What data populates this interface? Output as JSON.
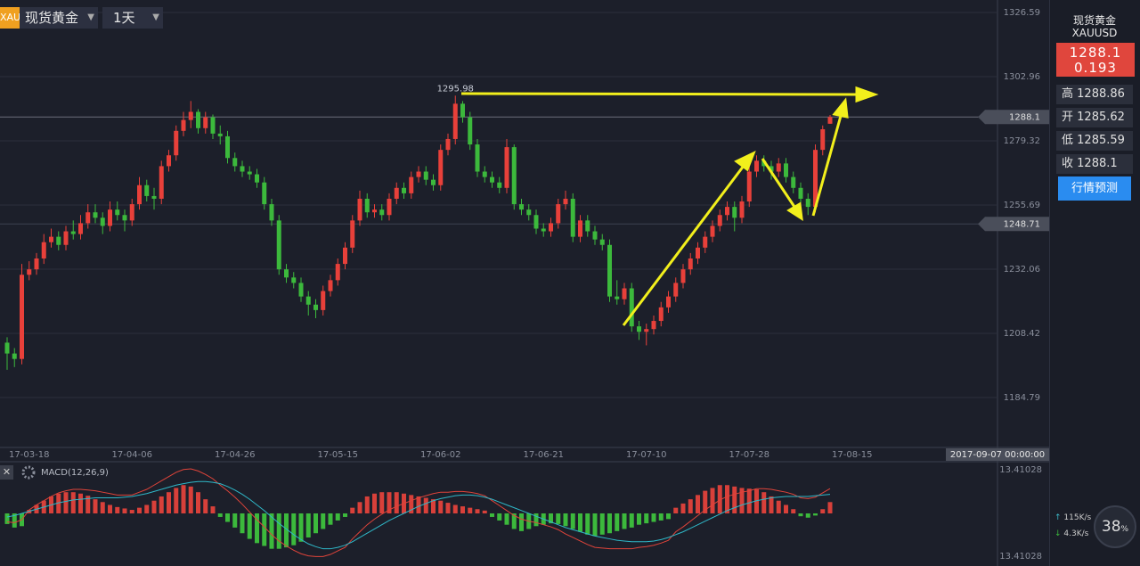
{
  "toolbar": {
    "badge": "XAU",
    "symbol": "现货黄金",
    "period": "1天"
  },
  "chart_data": [
    {
      "type": "candlestick",
      "categories": [
        null,
        null,
        null,
        "17-03-18",
        null,
        null,
        null,
        null,
        null,
        null,
        null,
        null,
        null,
        null,
        null,
        null,
        null,
        "17-04-06",
        null,
        null,
        null,
        null,
        null,
        null,
        null,
        null,
        null,
        null,
        null,
        null,
        null,
        "17-04-26",
        null,
        null,
        null,
        null,
        null,
        null,
        null,
        null,
        null,
        null,
        null,
        null,
        null,
        "17-05-15",
        null,
        null,
        null,
        null,
        null,
        null,
        null,
        null,
        null,
        null,
        null,
        null,
        null,
        "17-06-02",
        null,
        null,
        null,
        null,
        null,
        null,
        null,
        null,
        null,
        null,
        null,
        null,
        null,
        "17-06-21",
        null,
        null,
        null,
        null,
        null,
        null,
        null,
        null,
        null,
        null,
        null,
        null,
        null,
        "17-07-10",
        null,
        null,
        null,
        null,
        null,
        null,
        null,
        null,
        null,
        null,
        null,
        null,
        null,
        "17-07-28",
        null,
        null,
        null,
        null,
        null,
        null,
        null,
        null,
        null,
        null,
        null,
        null,
        null,
        "17-08-15"
      ],
      "candles": [
        [
          1205,
          1207,
          1195,
          1201
        ],
        [
          1201,
          1203,
          1196,
          1199
        ],
        [
          1199,
          1234,
          1197,
          1230
        ],
        [
          1230,
          1235,
          1228,
          1232
        ],
        [
          1232,
          1238,
          1230,
          1236
        ],
        [
          1236,
          1245,
          1234,
          1242
        ],
        [
          1242,
          1247,
          1240,
          1244
        ],
        [
          1244,
          1246,
          1239,
          1241
        ],
        [
          1241,
          1248,
          1239,
          1246
        ],
        [
          1246,
          1250,
          1243,
          1245
        ],
        [
          1245,
          1252,
          1243,
          1249
        ],
        [
          1249,
          1256,
          1247,
          1253
        ],
        [
          1253,
          1256,
          1249,
          1251
        ],
        [
          1251,
          1253,
          1245,
          1248
        ],
        [
          1248,
          1257,
          1246,
          1254
        ],
        [
          1254,
          1257,
          1250,
          1252
        ],
        [
          1252,
          1254,
          1246,
          1250
        ],
        [
          1250,
          1258,
          1248,
          1256
        ],
        [
          1256,
          1266,
          1254,
          1263
        ],
        [
          1263,
          1265,
          1257,
          1259
        ],
        [
          1259,
          1262,
          1254,
          1258
        ],
        [
          1258,
          1272,
          1256,
          1270
        ],
        [
          1270,
          1276,
          1268,
          1274
        ],
        [
          1274,
          1285,
          1272,
          1283
        ],
        [
          1283,
          1290,
          1281,
          1287
        ],
        [
          1287,
          1294,
          1284,
          1290
        ],
        [
          1290,
          1291,
          1282,
          1284
        ],
        [
          1284,
          1290,
          1282,
          1288
        ],
        [
          1288,
          1289,
          1280,
          1282
        ],
        [
          1282,
          1285,
          1278,
          1281
        ],
        [
          1281,
          1283,
          1271,
          1273
        ],
        [
          1273,
          1275,
          1268,
          1270
        ],
        [
          1270,
          1272,
          1266,
          1268
        ],
        [
          1268,
          1270,
          1265,
          1267
        ],
        [
          1267,
          1269,
          1262,
          1264
        ],
        [
          1264,
          1266,
          1254,
          1256
        ],
        [
          1256,
          1258,
          1248,
          1250
        ],
        [
          1250,
          1252,
          1230,
          1232
        ],
        [
          1232,
          1234,
          1227,
          1229
        ],
        [
          1229,
          1231,
          1225,
          1227
        ],
        [
          1227,
          1229,
          1220,
          1222
        ],
        [
          1222,
          1224,
          1215,
          1219
        ],
        [
          1219,
          1221,
          1214,
          1217
        ],
        [
          1217,
          1226,
          1215,
          1224
        ],
        [
          1224,
          1230,
          1222,
          1228
        ],
        [
          1228,
          1236,
          1226,
          1234
        ],
        [
          1234,
          1242,
          1232,
          1240
        ],
        [
          1240,
          1252,
          1238,
          1250
        ],
        [
          1250,
          1261,
          1248,
          1258
        ],
        [
          1258,
          1260,
          1251,
          1253
        ],
        [
          1253,
          1256,
          1251,
          1254
        ],
        [
          1254,
          1256,
          1250,
          1252
        ],
        [
          1252,
          1260,
          1250,
          1258
        ],
        [
          1258,
          1264,
          1256,
          1262
        ],
        [
          1262,
          1264,
          1258,
          1260
        ],
        [
          1260,
          1268,
          1258,
          1266
        ],
        [
          1266,
          1270,
          1264,
          1268
        ],
        [
          1268,
          1270,
          1263,
          1265
        ],
        [
          1265,
          1267,
          1261,
          1263
        ],
        [
          1263,
          1278,
          1261,
          1276
        ],
        [
          1276,
          1282,
          1274,
          1280
        ],
        [
          1280,
          1295.98,
          1278,
          1293
        ],
        [
          1293,
          1294,
          1286,
          1288
        ],
        [
          1288,
          1290,
          1276,
          1278
        ],
        [
          1278,
          1280,
          1266,
          1268
        ],
        [
          1268,
          1270,
          1264,
          1266
        ],
        [
          1266,
          1268,
          1262,
          1264
        ],
        [
          1264,
          1266,
          1260,
          1262
        ],
        [
          1262,
          1280,
          1260,
          1277
        ],
        [
          1277,
          1278,
          1254,
          1256
        ],
        [
          1256,
          1258,
          1252,
          1254
        ],
        [
          1254,
          1256,
          1250,
          1252
        ],
        [
          1252,
          1254,
          1245,
          1247
        ],
        [
          1247,
          1249,
          1244,
          1246
        ],
        [
          1246,
          1251,
          1244,
          1249
        ],
        [
          1249,
          1258,
          1247,
          1256
        ],
        [
          1256,
          1261,
          1254,
          1258
        ],
        [
          1258,
          1260,
          1242,
          1244
        ],
        [
          1244,
          1252,
          1242,
          1250
        ],
        [
          1250,
          1252,
          1244,
          1246
        ],
        [
          1246,
          1248,
          1241,
          1243
        ],
        [
          1243,
          1245,
          1239,
          1241
        ],
        [
          1241,
          1243,
          1220,
          1222
        ],
        [
          1222,
          1228,
          1219,
          1221
        ],
        [
          1221,
          1227,
          1219,
          1225
        ],
        [
          1225,
          1227,
          1209,
          1211
        ],
        [
          1211,
          1213,
          1206,
          1209
        ],
        [
          1209,
          1212,
          1204,
          1210
        ],
        [
          1210,
          1215,
          1208,
          1213
        ],
        [
          1213,
          1220,
          1211,
          1218
        ],
        [
          1218,
          1224,
          1216,
          1222
        ],
        [
          1222,
          1229,
          1220,
          1227
        ],
        [
          1227,
          1234,
          1225,
          1232
        ],
        [
          1232,
          1238,
          1230,
          1236
        ],
        [
          1236,
          1242,
          1234,
          1240
        ],
        [
          1240,
          1246,
          1238,
          1244
        ],
        [
          1244,
          1250,
          1242,
          1248
        ],
        [
          1248,
          1254,
          1246,
          1252
        ],
        [
          1252,
          1257,
          1250,
          1255
        ],
        [
          1255,
          1257,
          1246,
          1251
        ],
        [
          1251,
          1259,
          1249,
          1257
        ],
        [
          1257,
          1270,
          1255,
          1268
        ],
        [
          1268,
          1274,
          1266,
          1272
        ],
        [
          1272,
          1274,
          1268,
          1270
        ],
        [
          1270,
          1272,
          1265,
          1268
        ],
        [
          1268,
          1273,
          1266,
          1271
        ],
        [
          1271,
          1273,
          1264,
          1266
        ],
        [
          1266,
          1268,
          1260,
          1262
        ],
        [
          1262,
          1264,
          1256,
          1258
        ],
        [
          1258,
          1260,
          1252,
          1255
        ],
        [
          1255,
          1278,
          1253,
          1276
        ],
        [
          1276,
          1285,
          1274,
          1283.6
        ],
        [
          1285.62,
          1288.86,
          1285.59,
          1288.1
        ],
        null,
        null,
        null
      ],
      "ylim": [
        1166.4,
        1331.2
      ],
      "yticks": [
        1184.79,
        1208.42,
        1232.06,
        1255.69,
        1279.32,
        1302.96,
        1326.59
      ],
      "grid": true,
      "up_color": "#e8403a",
      "down_color": "#3cb93c",
      "price_lines": [
        1288.1,
        1248.71
      ],
      "crosshair_label": "2017-09-07 00:00:00"
    },
    {
      "type": "macd",
      "title": "MACD(12,26,9)",
      "histogram": [
        -15,
        -20,
        -18,
        5,
        12,
        18,
        24,
        28,
        30,
        30,
        28,
        25,
        20,
        16,
        12,
        9,
        7,
        5,
        8,
        12,
        18,
        24,
        30,
        36,
        40,
        38,
        30,
        20,
        10,
        -5,
        -12,
        -20,
        -28,
        -36,
        -42,
        -46,
        -50,
        -50,
        -48,
        -45,
        -40,
        -34,
        -28,
        -22,
        -16,
        -10,
        -5,
        8,
        16,
        24,
        28,
        30,
        30,
        30,
        28,
        26,
        24,
        22,
        20,
        18,
        15,
        12,
        10,
        8,
        6,
        4,
        -5,
        -10,
        -16,
        -22,
        -25,
        -22,
        -18,
        -16,
        -14,
        -15,
        -18,
        -22,
        -26,
        -30,
        -32,
        -30,
        -28,
        -25,
        -22,
        -20,
        -16,
        -14,
        -12,
        -10,
        -8,
        8,
        14,
        20,
        26,
        32,
        36,
        40,
        40,
        38,
        36,
        35,
        34,
        30,
        24,
        18,
        12,
        6,
        -4,
        -6,
        -3,
        6,
        16,
        null,
        null,
        null
      ],
      "dif": [
        -12,
        -13,
        -9,
        5,
        12,
        18,
        24,
        29,
        32,
        34,
        34,
        33,
        32,
        30,
        28,
        26,
        26,
        26,
        30,
        34,
        40,
        46,
        52,
        58,
        62,
        63,
        60,
        55,
        49,
        40,
        32,
        23,
        13,
        2,
        -9,
        -19,
        -30,
        -39,
        -46,
        -52,
        -57,
        -60,
        -61,
        -61,
        -58,
        -53,
        -48,
        -36,
        -26,
        -16,
        -8,
        -1,
        5,
        10,
        14,
        18,
        22,
        25,
        28,
        30,
        30,
        31,
        31,
        30,
        28,
        25,
        18,
        11,
        4,
        -3,
        -8,
        -11,
        -13,
        -16,
        -19,
        -23,
        -29,
        -34,
        -39,
        -44,
        -48,
        -49,
        -50,
        -50,
        -50,
        -50,
        -48,
        -47,
        -45,
        -42,
        -38,
        -26,
        -19,
        -11,
        -3,
        5,
        12,
        19,
        24,
        27,
        30,
        32,
        35,
        35,
        34,
        32,
        30,
        27,
        22,
        21,
        23,
        29,
        35,
        null,
        null,
        null
      ],
      "dea": [
        -5,
        -3,
        0,
        3,
        6,
        9,
        12,
        15,
        17,
        19,
        20,
        21,
        22,
        22,
        22,
        22,
        23,
        24,
        26,
        28,
        31,
        34,
        37,
        40,
        42,
        44,
        45,
        45,
        44,
        42,
        38,
        33,
        27,
        20,
        12,
        4,
        -5,
        -14,
        -22,
        -30,
        -37,
        -43,
        -47,
        -50,
        -50,
        -48,
        -45,
        -40,
        -34,
        -28,
        -22,
        -16,
        -10,
        -5,
        0,
        5,
        10,
        14,
        18,
        21,
        23,
        25,
        26,
        26,
        25,
        23,
        20,
        16,
        12,
        8,
        4,
        0,
        -4,
        -8,
        -12,
        -16,
        -20,
        -23,
        -26,
        -29,
        -32,
        -34,
        -36,
        -38,
        -39,
        -40,
        -40,
        -40,
        -39,
        -37,
        -34,
        -30,
        -26,
        -21,
        -16,
        -11,
        -6,
        -1,
        4,
        8,
        12,
        15,
        18,
        20,
        22,
        23,
        24,
        24,
        24,
        24,
        25,
        26,
        27,
        null,
        null,
        null
      ],
      "dif_color": "#e0443a",
      "dea_color": "#2fb8c8",
      "axis_labels": [
        13.41028,
        13.41028
      ]
    }
  ],
  "sidebar": {
    "name": "现货黄金",
    "code": "XAUUSD",
    "change": "0.193",
    "row_labels": [
      "高",
      "开",
      "低",
      "收"
    ],
    "button": "行情预测"
  },
  "status": {
    "up_speed": "115K/s",
    "down_speed": "4.3K/s",
    "usage": 38,
    "usage_unit": "%"
  }
}
